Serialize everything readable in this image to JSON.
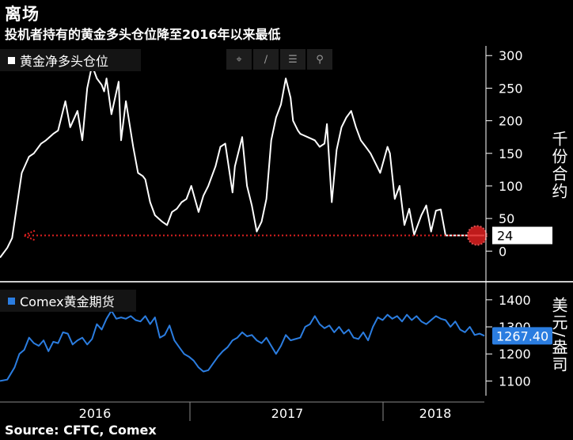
{
  "title": "离场",
  "subtitle": "投机者持有的黄金多头仓位降至2016年以来最低",
  "source": "Source: CFTC, Comex",
  "colors": {
    "line_white": "#ffffff",
    "line_blue": "#2b7de0",
    "marker": "#e02020",
    "divider": "#cccccc",
    "background": "#000000"
  },
  "toolbar": {
    "icons": [
      "crosshair-icon",
      "draw-line-icon",
      "table-icon",
      "zoom-icon"
    ],
    "glyphs": [
      "⌖",
      "∕",
      "☰",
      "⚲"
    ]
  },
  "chart_data": [
    {
      "type": "line",
      "legend": "黄金净多头仓位",
      "ylabel": "千份合约",
      "yticks": [
        "300",
        "250",
        "200",
        "150",
        "100",
        "50",
        "0"
      ],
      "ylim": [
        -30,
        310
      ],
      "last_value_label": "24",
      "annotation": "dotted red arrow at the latest level (24) pointing back to early 2016",
      "x": [
        0,
        0.015,
        0.025,
        0.035,
        0.045,
        0.06,
        0.07,
        0.085,
        0.095,
        0.11,
        0.12,
        0.135,
        0.145,
        0.16,
        0.17,
        0.18,
        0.19,
        0.2,
        0.21,
        0.215,
        0.22,
        0.23,
        0.245,
        0.25,
        0.26,
        0.275,
        0.285,
        0.295,
        0.3,
        0.31,
        0.32,
        0.335,
        0.345,
        0.355,
        0.365,
        0.375,
        0.385,
        0.395,
        0.41,
        0.42,
        0.43,
        0.435,
        0.445,
        0.455,
        0.465,
        0.48,
        0.485,
        0.5,
        0.51,
        0.52,
        0.53,
        0.54,
        0.55,
        0.56,
        0.57,
        0.58,
        0.59,
        0.6,
        0.605,
        0.615,
        0.62,
        0.635,
        0.65,
        0.66,
        0.67,
        0.675,
        0.685,
        0.695,
        0.705,
        0.715,
        0.725,
        0.735,
        0.745,
        0.755,
        0.765,
        0.775,
        0.785,
        0.8,
        0.805,
        0.815,
        0.825,
        0.835,
        0.845,
        0.855,
        0.87,
        0.88,
        0.89,
        0.9,
        0.91,
        0.92,
        0.935,
        0.945,
        0.955,
        0.965,
        0.975,
        0.985,
        1.0
      ],
      "y": [
        -10,
        5,
        20,
        70,
        120,
        145,
        150,
        165,
        170,
        180,
        185,
        230,
        190,
        215,
        170,
        250,
        285,
        265,
        255,
        245,
        265,
        210,
        260,
        170,
        230,
        160,
        120,
        115,
        110,
        75,
        55,
        45,
        40,
        60,
        65,
        75,
        80,
        100,
        60,
        85,
        100,
        110,
        130,
        160,
        165,
        90,
        130,
        175,
        100,
        70,
        30,
        45,
        80,
        170,
        205,
        225,
        265,
        235,
        200,
        185,
        180,
        175,
        170,
        160,
        165,
        195,
        75,
        155,
        190,
        205,
        215,
        190,
        170,
        160,
        150,
        135,
        120,
        160,
        150,
        80,
        100,
        40,
        65,
        25,
        55,
        70,
        30,
        62,
        64,
        24,
        24,
        24,
        24,
        24,
        24,
        24,
        24
      ]
    },
    {
      "type": "line",
      "legend": "Comex黄金期货",
      "ylabel": "美元/盎司",
      "yticks": [
        "1400",
        "1300",
        "1200",
        "1100"
      ],
      "ylim": [
        1075,
        1420
      ],
      "last_value_label": "1267.40",
      "x": [
        0,
        0.015,
        0.03,
        0.04,
        0.05,
        0.06,
        0.07,
        0.08,
        0.09,
        0.1,
        0.11,
        0.12,
        0.13,
        0.14,
        0.15,
        0.16,
        0.17,
        0.18,
        0.19,
        0.2,
        0.21,
        0.22,
        0.23,
        0.24,
        0.25,
        0.26,
        0.27,
        0.28,
        0.29,
        0.3,
        0.31,
        0.32,
        0.33,
        0.34,
        0.35,
        0.36,
        0.37,
        0.38,
        0.39,
        0.4,
        0.41,
        0.42,
        0.43,
        0.44,
        0.45,
        0.46,
        0.47,
        0.48,
        0.49,
        0.5,
        0.51,
        0.52,
        0.53,
        0.54,
        0.55,
        0.56,
        0.57,
        0.58,
        0.59,
        0.6,
        0.61,
        0.62,
        0.63,
        0.64,
        0.65,
        0.66,
        0.67,
        0.68,
        0.69,
        0.7,
        0.71,
        0.72,
        0.73,
        0.74,
        0.75,
        0.76,
        0.77,
        0.78,
        0.79,
        0.8,
        0.81,
        0.82,
        0.83,
        0.84,
        0.85,
        0.86,
        0.87,
        0.88,
        0.89,
        0.9,
        0.91,
        0.92,
        0.93,
        0.94,
        0.95,
        0.96,
        0.97,
        0.98,
        0.99,
        1.0
      ],
      "y": [
        1100,
        1105,
        1150,
        1200,
        1215,
        1260,
        1240,
        1230,
        1250,
        1210,
        1245,
        1240,
        1280,
        1275,
        1235,
        1250,
        1260,
        1235,
        1255,
        1310,
        1290,
        1330,
        1360,
        1330,
        1335,
        1330,
        1340,
        1325,
        1320,
        1340,
        1310,
        1335,
        1260,
        1270,
        1305,
        1250,
        1225,
        1200,
        1190,
        1175,
        1150,
        1135,
        1140,
        1165,
        1190,
        1210,
        1225,
        1250,
        1260,
        1280,
        1265,
        1270,
        1250,
        1240,
        1260,
        1230,
        1200,
        1230,
        1270,
        1250,
        1255,
        1260,
        1300,
        1310,
        1340,
        1310,
        1295,
        1305,
        1280,
        1300,
        1275,
        1290,
        1260,
        1255,
        1280,
        1250,
        1300,
        1335,
        1325,
        1345,
        1330,
        1340,
        1320,
        1345,
        1325,
        1340,
        1320,
        1310,
        1325,
        1340,
        1330,
        1325,
        1300,
        1320,
        1290,
        1280,
        1300,
        1270,
        1275,
        1267
      ]
    }
  ],
  "x_axis": {
    "labels": [
      "2016",
      "2017",
      "2018"
    ]
  }
}
